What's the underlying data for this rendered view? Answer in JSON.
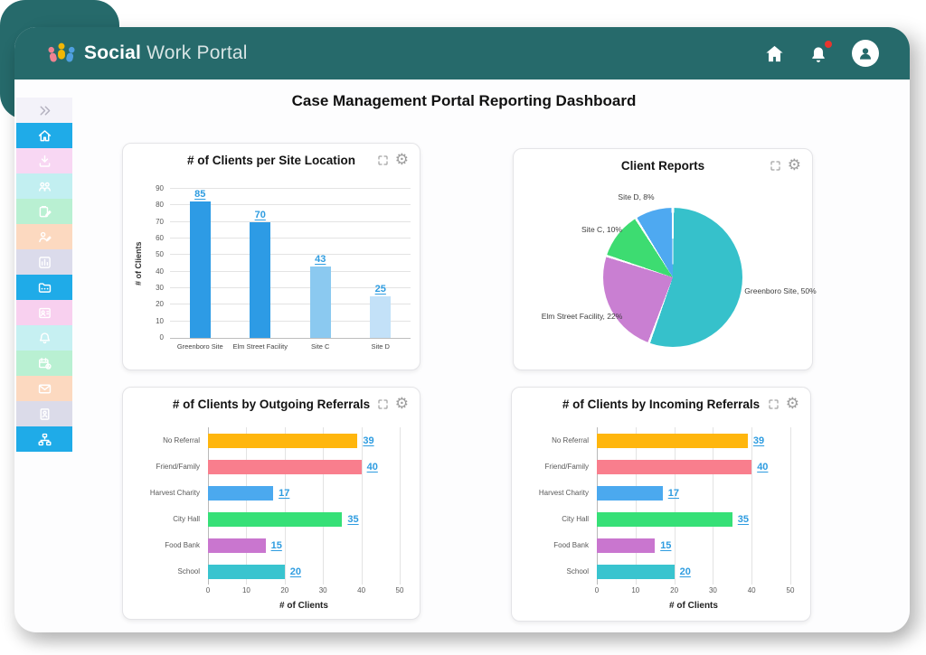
{
  "theme": {
    "header_bg": "#266a6b",
    "active_blue": "#1fabe8",
    "notification_dot": "#e8352e",
    "value_link_blue": "#2e9ce0"
  },
  "header": {
    "brand_bold": "Social",
    "brand_light": " Work Portal",
    "logo_colors": {
      "left_person": "#ef8391",
      "middle_person": "#f2b705",
      "right_person": "#4f9fdf"
    },
    "icons": [
      "home-icon",
      "bell-icon",
      "user-icon"
    ]
  },
  "sidebar": {
    "items": [
      {
        "name": "expand-sidebar",
        "icon": "chevrons-right",
        "color": "#f3f2f9",
        "icon_color": "#b3b1bf",
        "active": false
      },
      {
        "name": "home",
        "icon": "home",
        "color": "#1fabe8",
        "active": true
      },
      {
        "name": "downloads",
        "icon": "download",
        "color": "#f8d7f3",
        "active": false
      },
      {
        "name": "clients-group",
        "icon": "users",
        "color": "#c2eff1",
        "active": false
      },
      {
        "name": "case-notes",
        "icon": "clipboard-edit",
        "color": "#b9f0d2",
        "active": false
      },
      {
        "name": "client-edit",
        "icon": "person-edit",
        "color": "#fcd9c0",
        "active": false
      },
      {
        "name": "reports-chart",
        "icon": "bar-chart",
        "color": "#dbdbeb",
        "active": false
      },
      {
        "name": "case-files",
        "icon": "folder-dots",
        "color": "#1fabe8",
        "active": true
      },
      {
        "name": "contacts",
        "icon": "contact-card",
        "color": "#f8d0ef",
        "active": false
      },
      {
        "name": "notifications",
        "icon": "bell",
        "color": "#c6f0f2",
        "active": false
      },
      {
        "name": "appointments",
        "icon": "calendar-clock",
        "color": "#b9f0d2",
        "active": false
      },
      {
        "name": "messages",
        "icon": "mail",
        "color": "#fcd9c0",
        "active": false
      },
      {
        "name": "staff-badge",
        "icon": "id-badge",
        "color": "#dbdbe9",
        "active": false
      },
      {
        "name": "organization",
        "icon": "sitemap",
        "color": "#1fabe8",
        "active": false
      }
    ]
  },
  "page_title": "Case Management Portal Reporting Dashboard",
  "card_controls": {
    "expand": "expand",
    "settings": "settings"
  },
  "chart_data": [
    {
      "type": "bar",
      "title": "# of Clients per Site Location",
      "categories": [
        "Greenboro Site",
        "Elm Street Facility",
        "Site C",
        "Site D"
      ],
      "values": [
        85,
        70,
        43,
        25
      ],
      "bar_colors": [
        "#2d9be5",
        "#2d9be5",
        "#8bc9f0",
        "#c3e1f8"
      ],
      "ylabel": "# of Clients",
      "ylim": [
        0,
        90
      ],
      "ytick_step": 10,
      "grid": "horizontal",
      "value_label_color": "#2e9ce0"
    },
    {
      "type": "pie",
      "title": "Client Reports",
      "slices": [
        {
          "name": "Greenboro Site",
          "label": "Greenboro Site, 50%",
          "pct": 50,
          "color": "#36c1cb"
        },
        {
          "name": "Elm Street Facility",
          "label": "Elm Street Facility, 22%",
          "pct": 22,
          "color": "#c97fd2"
        },
        {
          "name": "Site C",
          "label": "Site C, 10%",
          "pct": 10,
          "color": "#3ddc71"
        },
        {
          "name": "Site D",
          "label": "Site D, 8%",
          "pct": 8,
          "color": "#4ea9f1"
        }
      ],
      "legend_position": "outside-labels"
    },
    {
      "type": "hbar",
      "title": "# of Clients by Outgoing Referrals",
      "categories": [
        "No Referral",
        "Friend/Family",
        "Harvest Charity",
        "City Hall",
        "Food Bank",
        "School"
      ],
      "values": [
        39,
        40,
        17,
        35,
        15,
        20
      ],
      "bar_colors": [
        "#ffb60d",
        "#f97e8d",
        "#4ba9ef",
        "#36e077",
        "#c976cf",
        "#39c4cf"
      ],
      "xlabel": "# of Clients",
      "xlim": [
        0,
        50
      ],
      "xticks": [
        0,
        10,
        20,
        30,
        40,
        50
      ],
      "grid": "vertical",
      "value_label_color": "#2e9ce0"
    },
    {
      "type": "hbar",
      "title": "# of Clients by Incoming Referrals",
      "categories": [
        "No Referral",
        "Friend/Family",
        "Harvest Charity",
        "City Hall",
        "Food Bank",
        "School"
      ],
      "values": [
        39,
        40,
        17,
        35,
        15,
        20
      ],
      "bar_colors": [
        "#ffb60d",
        "#f97e8d",
        "#4ba9ef",
        "#36e077",
        "#c976cf",
        "#39c4cf"
      ],
      "xlabel": "# of Clients",
      "xlim": [
        0,
        50
      ],
      "xticks": [
        0,
        10,
        20,
        30,
        40,
        50
      ],
      "grid": "vertical",
      "value_label_color": "#2e9ce0"
    }
  ]
}
